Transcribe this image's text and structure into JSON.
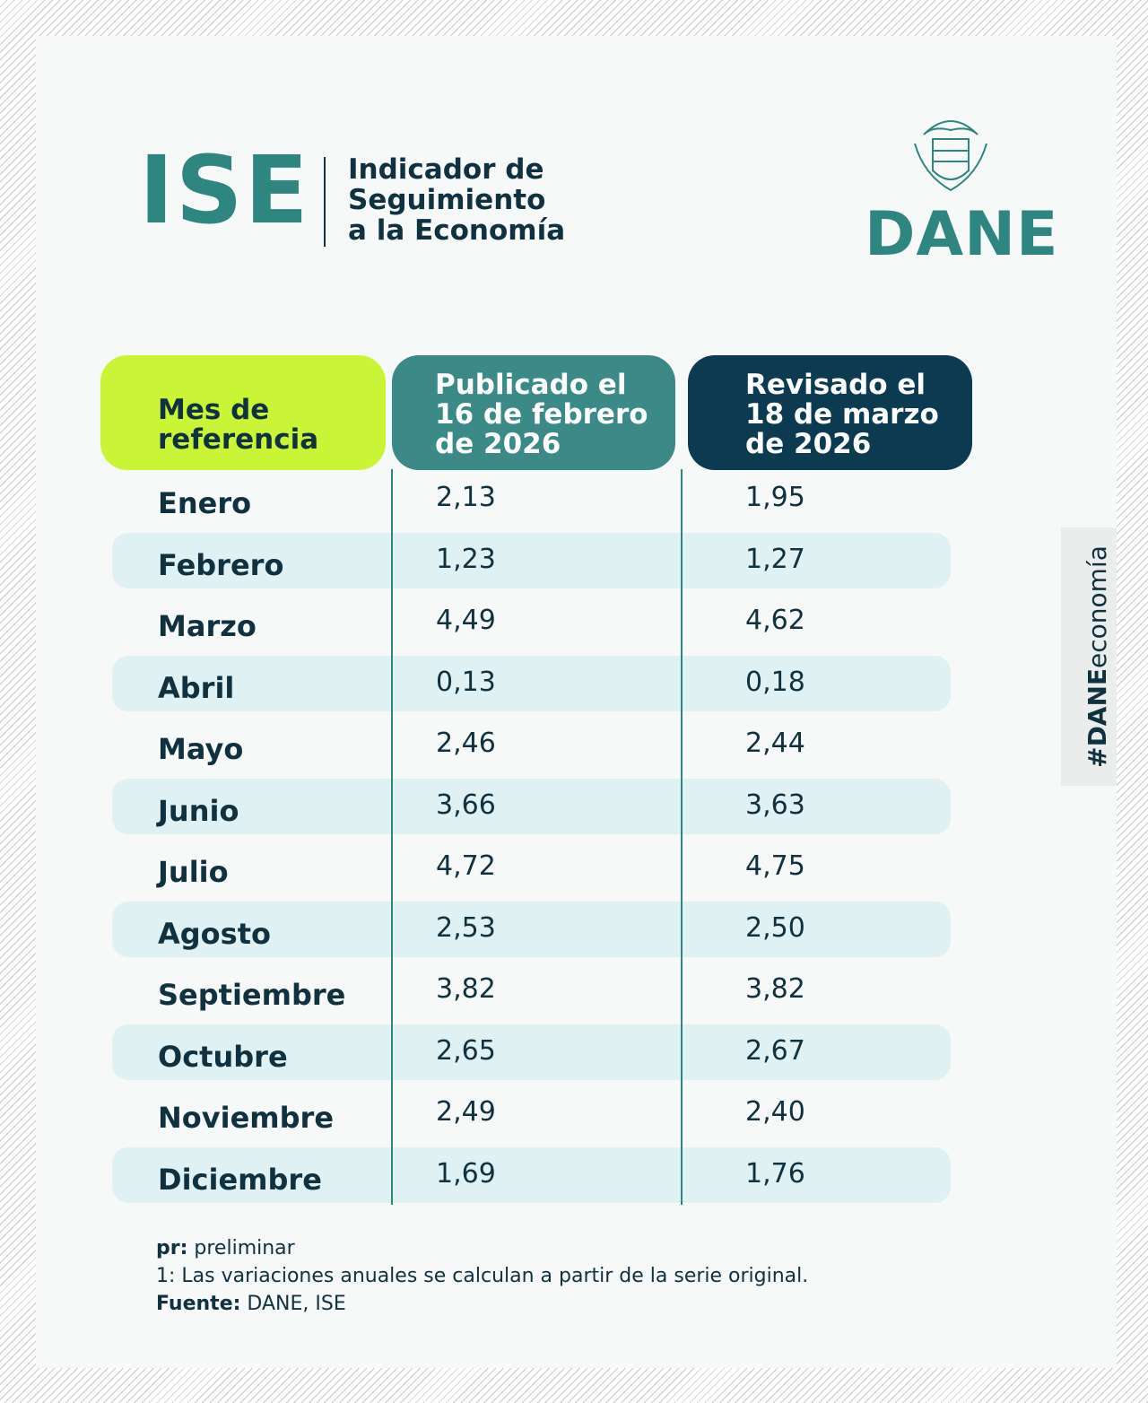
{
  "header": {
    "title": "ISE",
    "subtitle_lines": [
      "Indicador de",
      "Seguimiento",
      "a la Economía"
    ],
    "logo": "DANE"
  },
  "hashtag": {
    "bold": "#DANE",
    "light": "economía"
  },
  "table": {
    "headers": [
      [
        "Mes de",
        "referencia"
      ],
      [
        "Publicado el",
        "16 de febrero",
        "de 2026"
      ],
      [
        "Revisado el",
        "18 de marzo",
        "de 2026"
      ]
    ],
    "rows": [
      [
        "Enero",
        "2,13",
        "1,95"
      ],
      [
        "Febrero",
        "1,23",
        "1,27"
      ],
      [
        "Marzo",
        "4,49",
        "4,62"
      ],
      [
        "Abril",
        "0,13",
        "0,18"
      ],
      [
        "Mayo",
        "2,46",
        "2,44"
      ],
      [
        "Junio",
        "3,66",
        "3,63"
      ],
      [
        "Julio",
        "4,72",
        "4,75"
      ],
      [
        "Agosto",
        "2,53",
        "2,50"
      ],
      [
        "Septiembre",
        "3,82",
        "3,82"
      ],
      [
        "Octubre",
        "2,65",
        "2,67"
      ],
      [
        "Noviembre",
        "2,49",
        "2,40"
      ],
      [
        "Diciembre",
        "1,69",
        "1,76"
      ]
    ]
  },
  "notes": [
    {
      "label": "pr:",
      "text": "preliminar"
    },
    {
      "text": "1: Las variaciones anuales se calculan a partir de la serie original."
    },
    {
      "label": "Fuente:",
      "text": "DANE, ISE"
    }
  ]
}
